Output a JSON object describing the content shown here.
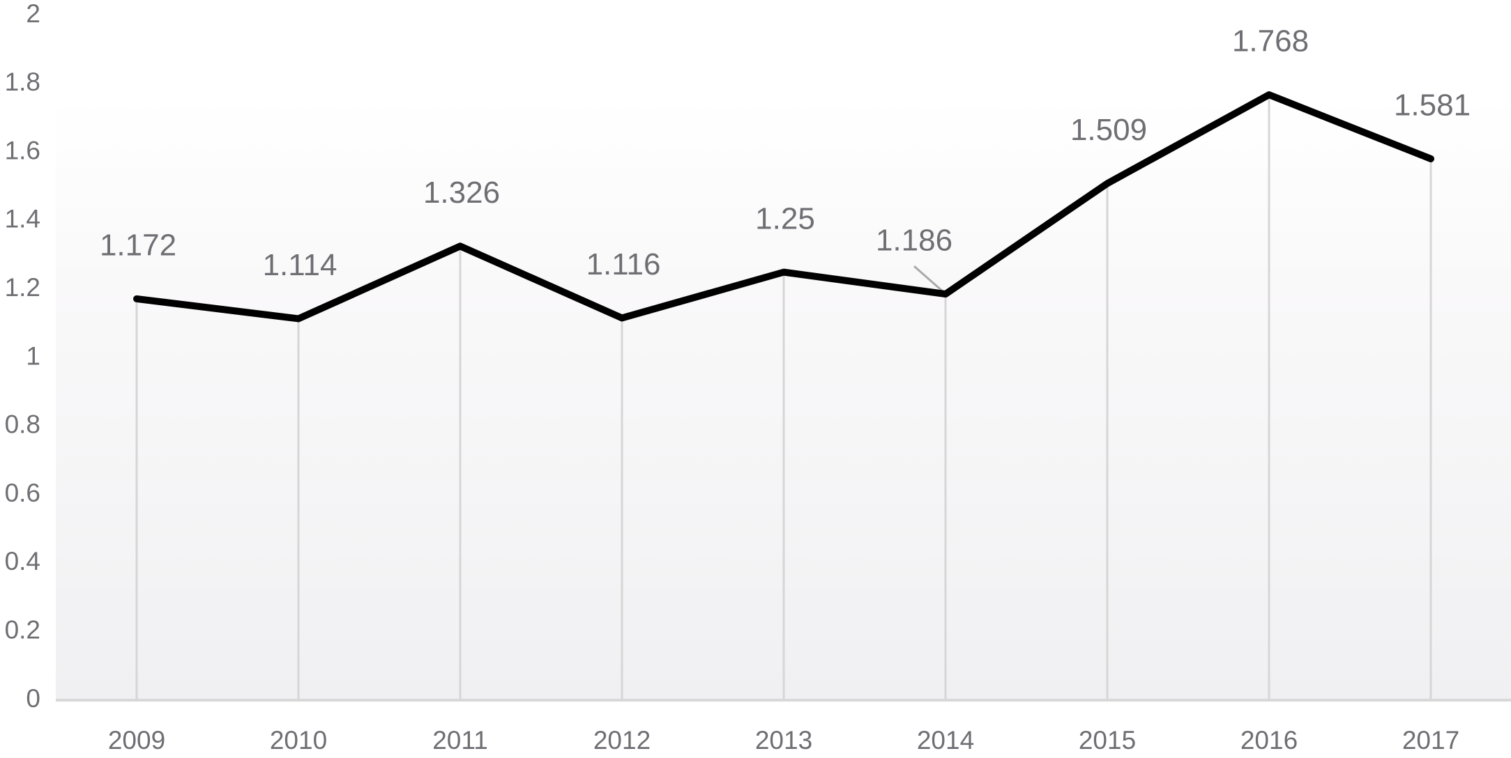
{
  "chart_data": {
    "type": "line",
    "categories": [
      "2009",
      "2010",
      "2011",
      "2012",
      "2013",
      "2014",
      "2015",
      "2016",
      "2017"
    ],
    "values": [
      1.172,
      1.114,
      1.326,
      1.116,
      1.25,
      1.186,
      1.509,
      1.768,
      1.581
    ],
    "color": "#000000",
    "ylim": [
      0,
      2
    ],
    "yticks": [
      0,
      0.2,
      0.4,
      0.6,
      0.8,
      1,
      1.2,
      1.4,
      1.6,
      1.8,
      2
    ]
  }
}
